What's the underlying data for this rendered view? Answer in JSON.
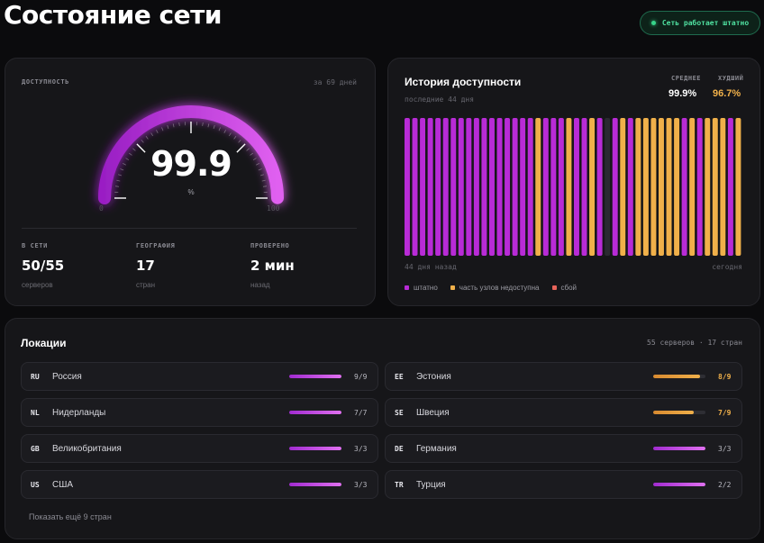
{
  "header": {
    "title": "Состояние сети",
    "status": "Сеть работает штатно",
    "status_color": "#37d38a"
  },
  "gauge": {
    "label": "ДОСТУПНОСТЬ",
    "period": "за 69 дней",
    "value": "99.9",
    "percent": 99.9,
    "unit": "%",
    "min_label": "0",
    "max_label": "100",
    "accent": "#c13ee0"
  },
  "stats": [
    {
      "label": "В СЕТИ",
      "value": "50/55",
      "sub": "серверов"
    },
    {
      "label": "ГЕОГРАФИЯ",
      "value": "17",
      "sub": "стран"
    },
    {
      "label": "ПРОВЕРЕНО",
      "value": "2 мин",
      "sub": "назад"
    }
  ],
  "history": {
    "title": "История доступности",
    "subtitle": "последние 44 дня",
    "avg_label": "СРЕДНЕЕ",
    "avg_value": "99.9%",
    "worst_label": "ХУДШИЙ",
    "worst_value": "96.7%",
    "left_label": "44 дня назад",
    "right_label": "сегодня",
    "colors": {
      "ok": "#b82bd6",
      "partial": "#f0b04a",
      "fail": "#e8645a",
      "empty": "#2a2a30"
    },
    "days": [
      "ok",
      "ok",
      "ok",
      "ok",
      "ok",
      "ok",
      "ok",
      "ok",
      "ok",
      "ok",
      "ok",
      "ok",
      "ok",
      "ok",
      "ok",
      "ok",
      "ok",
      "partial",
      "ok",
      "ok",
      "ok",
      "partial",
      "ok",
      "ok",
      "partial",
      "ok",
      "empty",
      "ok",
      "partial",
      "ok",
      "partial",
      "partial",
      "partial",
      "partial",
      "partial",
      "partial",
      "ok",
      "partial",
      "ok",
      "partial",
      "partial",
      "partial",
      "ok",
      "partial"
    ],
    "legend": [
      {
        "key": "ok",
        "label": "штатно"
      },
      {
        "key": "partial",
        "label": "часть узлов недоступна"
      },
      {
        "key": "fail",
        "label": "сбой"
      }
    ]
  },
  "locations": {
    "title": "Локации",
    "summary": "55 серверов · 17 стран",
    "show_more": "Показать ещё 9 стран",
    "items": [
      {
        "code": "RU",
        "name": "Россия",
        "count": "9/9",
        "ratio": 1.0,
        "state": "ok"
      },
      {
        "code": "EE",
        "name": "Эстония",
        "count": "8/9",
        "ratio": 0.889,
        "state": "partial"
      },
      {
        "code": "NL",
        "name": "Нидерланды",
        "count": "7/7",
        "ratio": 1.0,
        "state": "ok"
      },
      {
        "code": "SE",
        "name": "Швеция",
        "count": "7/9",
        "ratio": 0.778,
        "state": "partial"
      },
      {
        "code": "GB",
        "name": "Великобритания",
        "count": "3/3",
        "ratio": 1.0,
        "state": "ok"
      },
      {
        "code": "DE",
        "name": "Германия",
        "count": "3/3",
        "ratio": 1.0,
        "state": "ok"
      },
      {
        "code": "US",
        "name": "США",
        "count": "3/3",
        "ratio": 1.0,
        "state": "ok"
      },
      {
        "code": "TR",
        "name": "Турция",
        "count": "2/2",
        "ratio": 1.0,
        "state": "ok"
      }
    ]
  }
}
